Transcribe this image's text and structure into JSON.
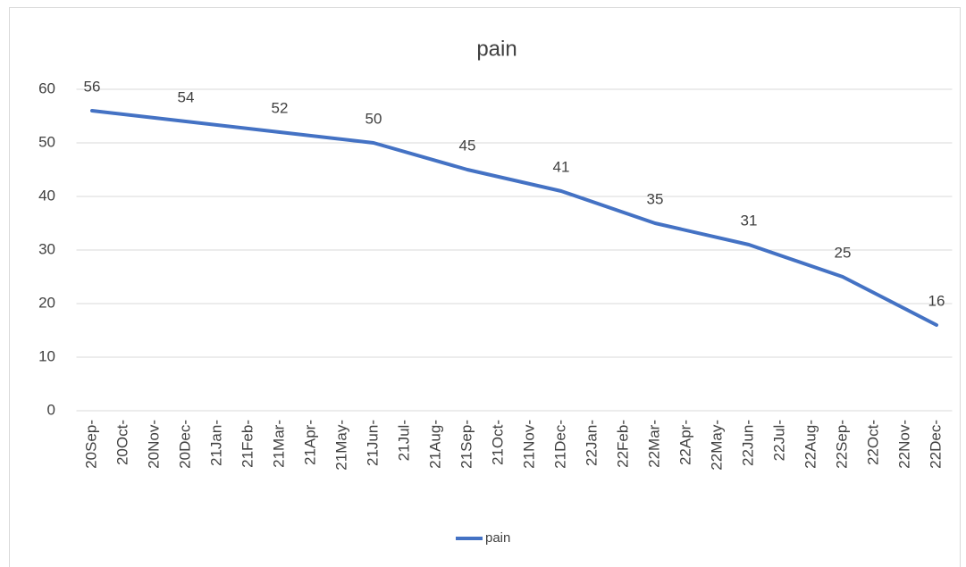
{
  "chart_data": {
    "type": "line",
    "title": "pain",
    "categories": [
      "20Sep-",
      "20Oct-",
      "20Nov-",
      "20Dec-",
      "21Jan-",
      "21Feb-",
      "21Mar-",
      "21Apr-",
      "21May-",
      "21Jun-",
      "21Jul-",
      "21Aug-",
      "21Sep-",
      "21Oct-",
      "21Nov-",
      "21Dec-",
      "22Jan-",
      "22Feb-",
      "22Mar-",
      "22Apr-",
      "22May-",
      "22Jun-",
      "22Jul-",
      "22Aug-",
      "22Sep-",
      "22Oct-",
      "22Nov-",
      "22Dec-"
    ],
    "x": [
      "20Sep-",
      "20Dec-",
      "21Mar-",
      "21Jun-",
      "21Sep-",
      "21Dec-",
      "22Mar-",
      "22Jun-",
      "22Sep-",
      "22Dec-"
    ],
    "series": [
      {
        "name": "pain",
        "color": "#4472c4",
        "values": [
          56,
          54,
          52,
          50,
          45,
          41,
          35,
          31,
          25,
          16
        ]
      }
    ],
    "ylim": [
      0,
      60
    ],
    "yticks": [
      0,
      10,
      20,
      30,
      40,
      50,
      60
    ],
    "grid": true,
    "legend": "bottom"
  }
}
